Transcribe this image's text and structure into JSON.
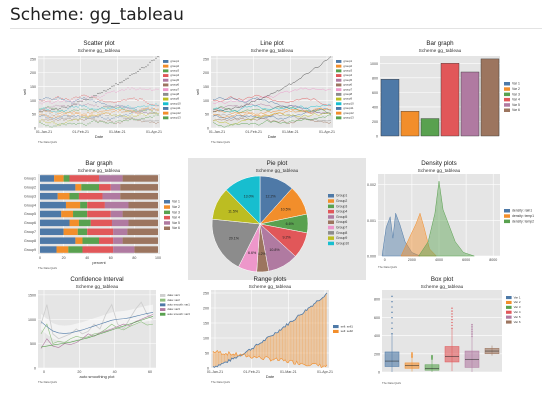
{
  "page": {
    "title": "Scheme: gg_tableau"
  },
  "palette": [
    "#4E79A7",
    "#F28E2B",
    "#59A14F",
    "#E15759",
    "#B07AA1",
    "#9C755F",
    "#ED97CA",
    "#8C8C8C",
    "#BCBD22",
    "#17BECF"
  ],
  "note": "The Data Quirk",
  "chart_data": [
    {
      "type": "line",
      "title": "Scatter plot",
      "subtitle": "Scheme gg_tableau",
      "xlabel": "Date",
      "ylabel": "sell",
      "x_ticks": [
        "01-Jan-21",
        "01-Feb-21",
        "01-Mar-21",
        "01-Apr-21"
      ],
      "y_ticks": [
        0,
        50,
        100,
        150,
        200,
        250
      ],
      "ylim": [
        0,
        260
      ],
      "legend": [
        "group1",
        "group2",
        "group3",
        "group4",
        "group5",
        "group6",
        "group7",
        "group8",
        "group9",
        "group10",
        "group11",
        "group12",
        "group13"
      ],
      "legend_position": "right",
      "series_levels": [
        40,
        55,
        75,
        95,
        60,
        30,
        85,
        45,
        20,
        65,
        105,
        50,
        15
      ],
      "trend_series": {
        "start": 60,
        "end": 255
      }
    },
    {
      "type": "line",
      "title": "Line plot",
      "subtitle": "Scheme gg_tableau",
      "xlabel": "Date",
      "ylabel": "sell",
      "x_ticks": [
        "01-Jan-21",
        "01-Feb-21",
        "01-Mar-21",
        "01-Apr-21"
      ],
      "y_ticks": [
        0,
        50,
        100,
        150,
        200,
        250
      ],
      "ylim": [
        0,
        260
      ],
      "legend": [
        "group1",
        "group2",
        "group3",
        "group4",
        "group5",
        "group6",
        "group7",
        "group8",
        "group9",
        "group10",
        "group11",
        "group12",
        "group13"
      ],
      "legend_position": "right",
      "series_levels": [
        40,
        55,
        75,
        95,
        60,
        30,
        85,
        45,
        20,
        65,
        105,
        50,
        15
      ],
      "trend_series": {
        "start": 60,
        "end": 255
      }
    },
    {
      "type": "bar",
      "title": "Bar graph",
      "subtitle": "Scheme gg_tableau",
      "categories": [
        "Var 1",
        "Var 2",
        "Var 3",
        "Var 4",
        "Var 5",
        "Var 6"
      ],
      "values": [
        780,
        340,
        240,
        1000,
        880,
        1060
      ],
      "y_ticks": [
        0,
        200,
        400,
        600,
        800,
        1000
      ],
      "ylim": [
        0,
        1100
      ],
      "legend": [
        "Var 1",
        "Var 2",
        "Var 3",
        "Var 4",
        "Var 5",
        "Var 6"
      ],
      "legend_position": "right"
    },
    {
      "type": "bar",
      "orientation": "horizontal-stacked",
      "title": "Bar graph",
      "subtitle": "Scheme gg_tableau",
      "xlabel": "percent",
      "categories": [
        "Group1",
        "Group2",
        "Group3",
        "Group4",
        "Group5",
        "Group6",
        "Group7",
        "Group8",
        "Group9"
      ],
      "x_ticks": [
        0,
        20,
        40,
        60,
        80,
        100
      ],
      "series": [
        {
          "name": "Var 1",
          "values": [
            12,
            30,
            15,
            22,
            18,
            25,
            20,
            30,
            14
          ]
        },
        {
          "name": "Var 2",
          "values": [
            8,
            5,
            10,
            12,
            10,
            8,
            12,
            6,
            10
          ]
        },
        {
          "name": "Var 3",
          "values": [
            5,
            15,
            8,
            6,
            12,
            10,
            8,
            14,
            12
          ]
        },
        {
          "name": "Var 4",
          "values": [
            25,
            10,
            20,
            15,
            20,
            18,
            22,
            12,
            26
          ]
        },
        {
          "name": "Var 5",
          "values": [
            20,
            8,
            15,
            20,
            10,
            14,
            12,
            8,
            18
          ]
        },
        {
          "name": "Var 6",
          "values": [
            30,
            32,
            32,
            25,
            30,
            25,
            26,
            30,
            20
          ]
        }
      ],
      "legend": [
        "Var 1",
        "Var 2",
        "Var 3",
        "Var 4",
        "Var 5",
        "Var 6"
      ],
      "legend_position": "right"
    },
    {
      "type": "pie",
      "title": "Pie plot",
      "subtitle": "Scheme gg_tableau",
      "slices": [
        {
          "label": "Group1",
          "value": 12.2
        },
        {
          "label": "Group2",
          "value": 10.5
        },
        {
          "label": "Group3",
          "value": 6.6
        },
        {
          "label": "Group4",
          "value": 9.2
        },
        {
          "label": "Group5",
          "value": 10.8
        },
        {
          "label": "Group6",
          "value": 4.2
        },
        {
          "label": "Group7",
          "value": 6.6
        },
        {
          "label": "Group8",
          "value": 20.1
        },
        {
          "label": "Group9",
          "value": 11.5
        },
        {
          "label": "Group10",
          "value": 13.0
        }
      ],
      "pct_labels": [
        "12.2%",
        "10.5%",
        "6.6%",
        "9.2%",
        "10.8%",
        "4.2%",
        "6.6%",
        "20.1%",
        "11.5%",
        "13.0%"
      ],
      "legend": [
        "Group1",
        "Group2",
        "Group3",
        "Group4",
        "Group5",
        "Group6",
        "Group7",
        "Group8",
        "Group9",
        "Group10"
      ],
      "legend_position": "right"
    },
    {
      "type": "area",
      "title": "Density plots",
      "subtitle": "Scheme gg_tableau",
      "x_ticks": [
        0,
        2000,
        4000,
        6000,
        8000
      ],
      "y_ticks": [
        "0.002",
        "0.001",
        "0.000"
      ],
      "xlim": [
        -500,
        8500
      ],
      "series": [
        {
          "name": "density: rain1",
          "x": [
            -200,
            100,
            400,
            600,
            800,
            1100,
            1500,
            2000,
            2600
          ],
          "y": [
            0,
            0.0008,
            0.0011,
            0.0005,
            0.0012,
            0.0009,
            0.0004,
            0.0001,
            0
          ]
        },
        {
          "name": "density: temp1",
          "x": [
            1200,
            1800,
            2300,
            2600,
            2900,
            3300,
            3800
          ],
          "y": [
            0,
            0.0005,
            0.0009,
            0.0012,
            0.0008,
            0.0002,
            0
          ]
        },
        {
          "name": "density: temp2",
          "x": [
            2500,
            3200,
            3700,
            4000,
            4300,
            4700,
            5200,
            5800,
            6600
          ],
          "y": [
            0,
            0.0004,
            0.0012,
            0.0021,
            0.0013,
            0.0009,
            0.0004,
            0.0001,
            0
          ]
        }
      ],
      "legend_position": "right"
    },
    {
      "type": "line",
      "title": "Confidence Interval",
      "subtitle": "Scheme gg_tableau",
      "xlabel": "auto smoothing plot",
      "x_ticks": [
        0,
        20,
        40,
        60
      ],
      "y_ticks": [
        0,
        500,
        1000,
        1500
      ],
      "ylim": [
        0,
        1600
      ],
      "series": [
        {
          "name": "data: var1",
          "values": [
            900,
            1300,
            700,
            600,
            650,
            700,
            800,
            700,
            750,
            900,
            800,
            1100,
            1300,
            900,
            800,
            1000,
            1200,
            1350,
            1100,
            1000
          ]
        },
        {
          "name": "data: var2",
          "values": [
            700,
            900,
            500,
            550,
            520,
            600,
            650,
            620,
            640,
            700,
            720,
            800,
            900,
            820,
            780,
            850,
            900,
            950,
            880,
            900
          ]
        },
        {
          "name": "auto smooth: var1",
          "values": [
            950,
            850,
            760,
            720,
            710,
            720,
            750,
            780,
            820,
            860,
            900,
            940,
            980,
            1000,
            1010,
            1030,
            1060,
            1090,
            1120,
            1140
          ]
        },
        {
          "name": "data: var3",
          "values": [
            400,
            600,
            450,
            420,
            500,
            480,
            520,
            600,
            700,
            650,
            720,
            760,
            800,
            850,
            900,
            870,
            950,
            1000,
            1050,
            1100
          ]
        },
        {
          "name": "auto smooth: var3",
          "values": [
            430,
            450,
            470,
            490,
            510,
            530,
            560,
            590,
            620,
            660,
            700,
            740,
            780,
            820,
            860,
            900,
            940,
            980,
            1020,
            1060
          ]
        }
      ],
      "legend_position": "right"
    },
    {
      "type": "area",
      "title": "Range plots",
      "subtitle": "Scheme gg_tableau",
      "xlabel": "Date",
      "x_ticks": [
        "01-Jan-21",
        "01-Feb-21",
        "01-Mar-21",
        "01-Apr-21"
      ],
      "y_ticks": [
        0,
        50,
        100,
        150,
        200,
        250
      ],
      "ylim": [
        0,
        260
      ],
      "series": [
        {
          "name": "sell: sell1",
          "start": 5,
          "end": 250
        },
        {
          "name": "sell: sell2",
          "start": 55,
          "end": 5
        }
      ],
      "legend_position": "right"
    },
    {
      "type": "box",
      "title": "Box plot",
      "subtitle": "Scheme gg_tableau",
      "y_ticks": [
        0,
        200,
        400,
        600,
        800
      ],
      "ylim": [
        0,
        900
      ],
      "legend": [
        "Var 1",
        "Var 2",
        "Var 3",
        "Var 4",
        "Var 5",
        "Var 6"
      ],
      "boxes": [
        {
          "name": "Var 1",
          "min": 0,
          "q1": 60,
          "median": 120,
          "q3": 220,
          "max": 420,
          "outlier_max": 830
        },
        {
          "name": "Var 2",
          "min": 5,
          "q1": 40,
          "median": 70,
          "q3": 100,
          "max": 160,
          "outlier_max": 210
        },
        {
          "name": "Var 3",
          "min": 0,
          "q1": 20,
          "median": 40,
          "q3": 80,
          "max": 140,
          "outlier_max": 180
        },
        {
          "name": "Var 4",
          "min": 10,
          "q1": 110,
          "median": 170,
          "q3": 280,
          "max": 480,
          "outlier_max": 700
        },
        {
          "name": "Var 5",
          "min": 0,
          "q1": 50,
          "median": 140,
          "q3": 230,
          "max": 390,
          "outlier_max": 520
        },
        {
          "name": "Var 6",
          "min": 180,
          "q1": 200,
          "median": 230,
          "q3": 260,
          "max": 290,
          "outlier_max": 0
        }
      ],
      "legend_position": "right"
    }
  ]
}
